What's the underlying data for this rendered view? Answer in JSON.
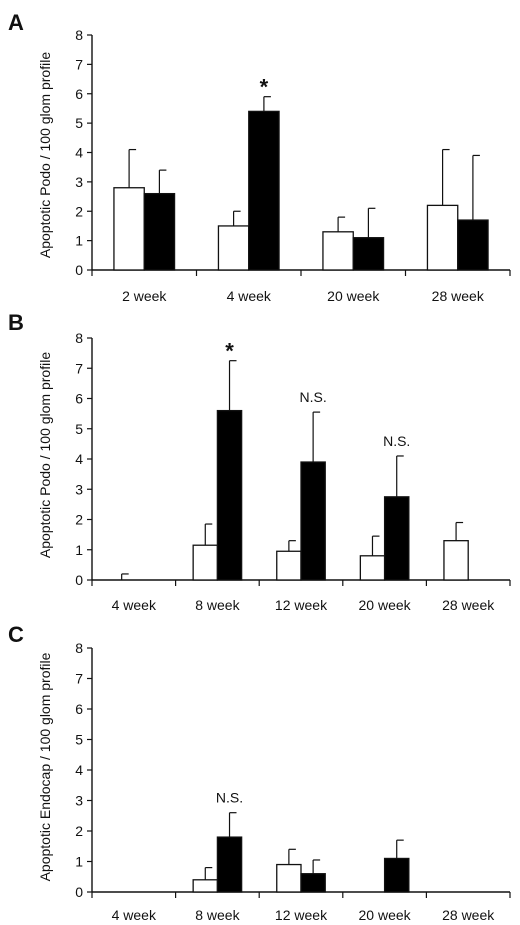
{
  "chart_data": [
    {
      "panel": "A",
      "type": "bar",
      "title": "",
      "ylabel": "Apoptotic Podo / 100 glom profile",
      "xlabel": "",
      "ylim": [
        0,
        8
      ],
      "yticks": [
        "0",
        "1",
        "2",
        "3",
        "4",
        "5",
        "6",
        "7",
        "8"
      ],
      "categories": [
        "2 week",
        "4 week",
        "20 week",
        "28 week"
      ],
      "series": [
        {
          "fill": "#ffffff",
          "values": [
            2.8,
            1.5,
            1.3,
            2.2
          ],
          "errors": [
            1.3,
            0.5,
            0.5,
            1.9
          ]
        },
        {
          "fill": "#000000",
          "values": [
            2.6,
            5.4,
            1.1,
            1.7
          ],
          "errors": [
            0.8,
            0.5,
            1.0,
            2.2
          ]
        }
      ],
      "annotations": [
        {
          "category": 1,
          "series": 1,
          "text": "*"
        }
      ]
    },
    {
      "panel": "B",
      "type": "bar",
      "title": "",
      "ylabel": "Apoptotic Podo / 100 glom profile",
      "xlabel": "",
      "ylim": [
        0,
        8
      ],
      "yticks": [
        "0",
        "1",
        "2",
        "3",
        "4",
        "5",
        "6",
        "7",
        "8"
      ],
      "categories": [
        "4 week",
        "8 week",
        "12 week",
        "20 week",
        "28 week"
      ],
      "series": [
        {
          "fill": "#ffffff",
          "values": [
            0.0,
            1.15,
            0.95,
            0.8,
            1.3
          ],
          "errors": [
            0.2,
            0.7,
            0.35,
            0.65,
            0.6
          ]
        },
        {
          "fill": "#000000",
          "values": [
            0.0,
            5.6,
            3.9,
            2.75,
            0.0
          ],
          "errors": [
            0.0,
            1.65,
            1.65,
            1.35,
            0.0
          ]
        }
      ],
      "annotations": [
        {
          "category": 1,
          "series": 1,
          "text": "*"
        },
        {
          "category": 2,
          "series": 1,
          "text": "N.S."
        },
        {
          "category": 3,
          "series": 1,
          "text": "N.S."
        }
      ]
    },
    {
      "panel": "C",
      "type": "bar",
      "title": "",
      "ylabel": "Apoptotic Endocap / 100 glom profile",
      "xlabel": "",
      "ylim": [
        0,
        8
      ],
      "yticks": [
        "0",
        "1",
        "2",
        "3",
        "4",
        "5",
        "6",
        "7",
        "8"
      ],
      "categories": [
        "4 week",
        "8 week",
        "12 week",
        "20 week",
        "28 week"
      ],
      "series": [
        {
          "fill": "#ffffff",
          "values": [
            0.0,
            0.4,
            0.9,
            0.0,
            0.0
          ],
          "errors": [
            0.0,
            0.4,
            0.5,
            0.0,
            0.0
          ]
        },
        {
          "fill": "#000000",
          "values": [
            0.0,
            1.8,
            0.6,
            1.1,
            0.0
          ],
          "errors": [
            0.0,
            0.8,
            0.45,
            0.6,
            0.0
          ]
        }
      ],
      "annotations": [
        {
          "category": 1,
          "series": 1,
          "text": "N.S."
        }
      ]
    }
  ]
}
